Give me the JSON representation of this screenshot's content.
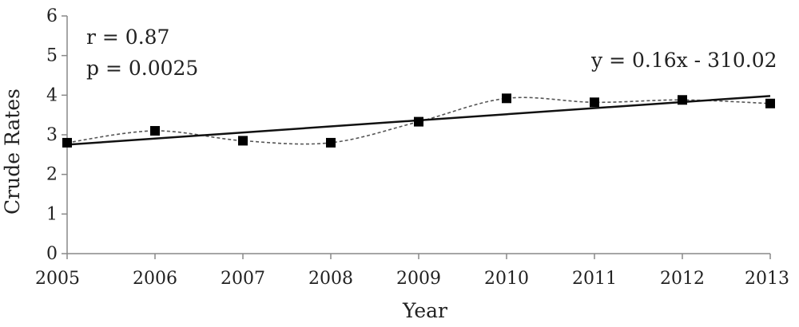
{
  "chart_data": {
    "type": "line",
    "x": [
      2005,
      2006,
      2007,
      2008,
      2009,
      2010,
      2011,
      2012,
      2013
    ],
    "series": [
      {
        "values": [
          2.8,
          3.1,
          2.85,
          2.8,
          3.33,
          3.92,
          3.82,
          3.88,
          3.79
        ]
      }
    ],
    "trendline": {
      "x": [
        2005,
        2013
      ],
      "y": [
        2.75,
        3.98
      ]
    },
    "xlabel": "Year",
    "ylabel": "Crude Rates",
    "xlim": [
      2005,
      2013
    ],
    "ylim": [
      0,
      6
    ],
    "x_ticks": [
      2005,
      2006,
      2007,
      2008,
      2009,
      2010,
      2011,
      2012,
      2013
    ],
    "y_ticks": [
      0,
      1,
      2,
      3,
      4,
      5,
      6
    ],
    "annotations": {
      "r": "r = 0.87",
      "p": "p = 0.0025",
      "equation": "y = 0.16x - 310.02"
    },
    "grid": false,
    "legend": false
  }
}
